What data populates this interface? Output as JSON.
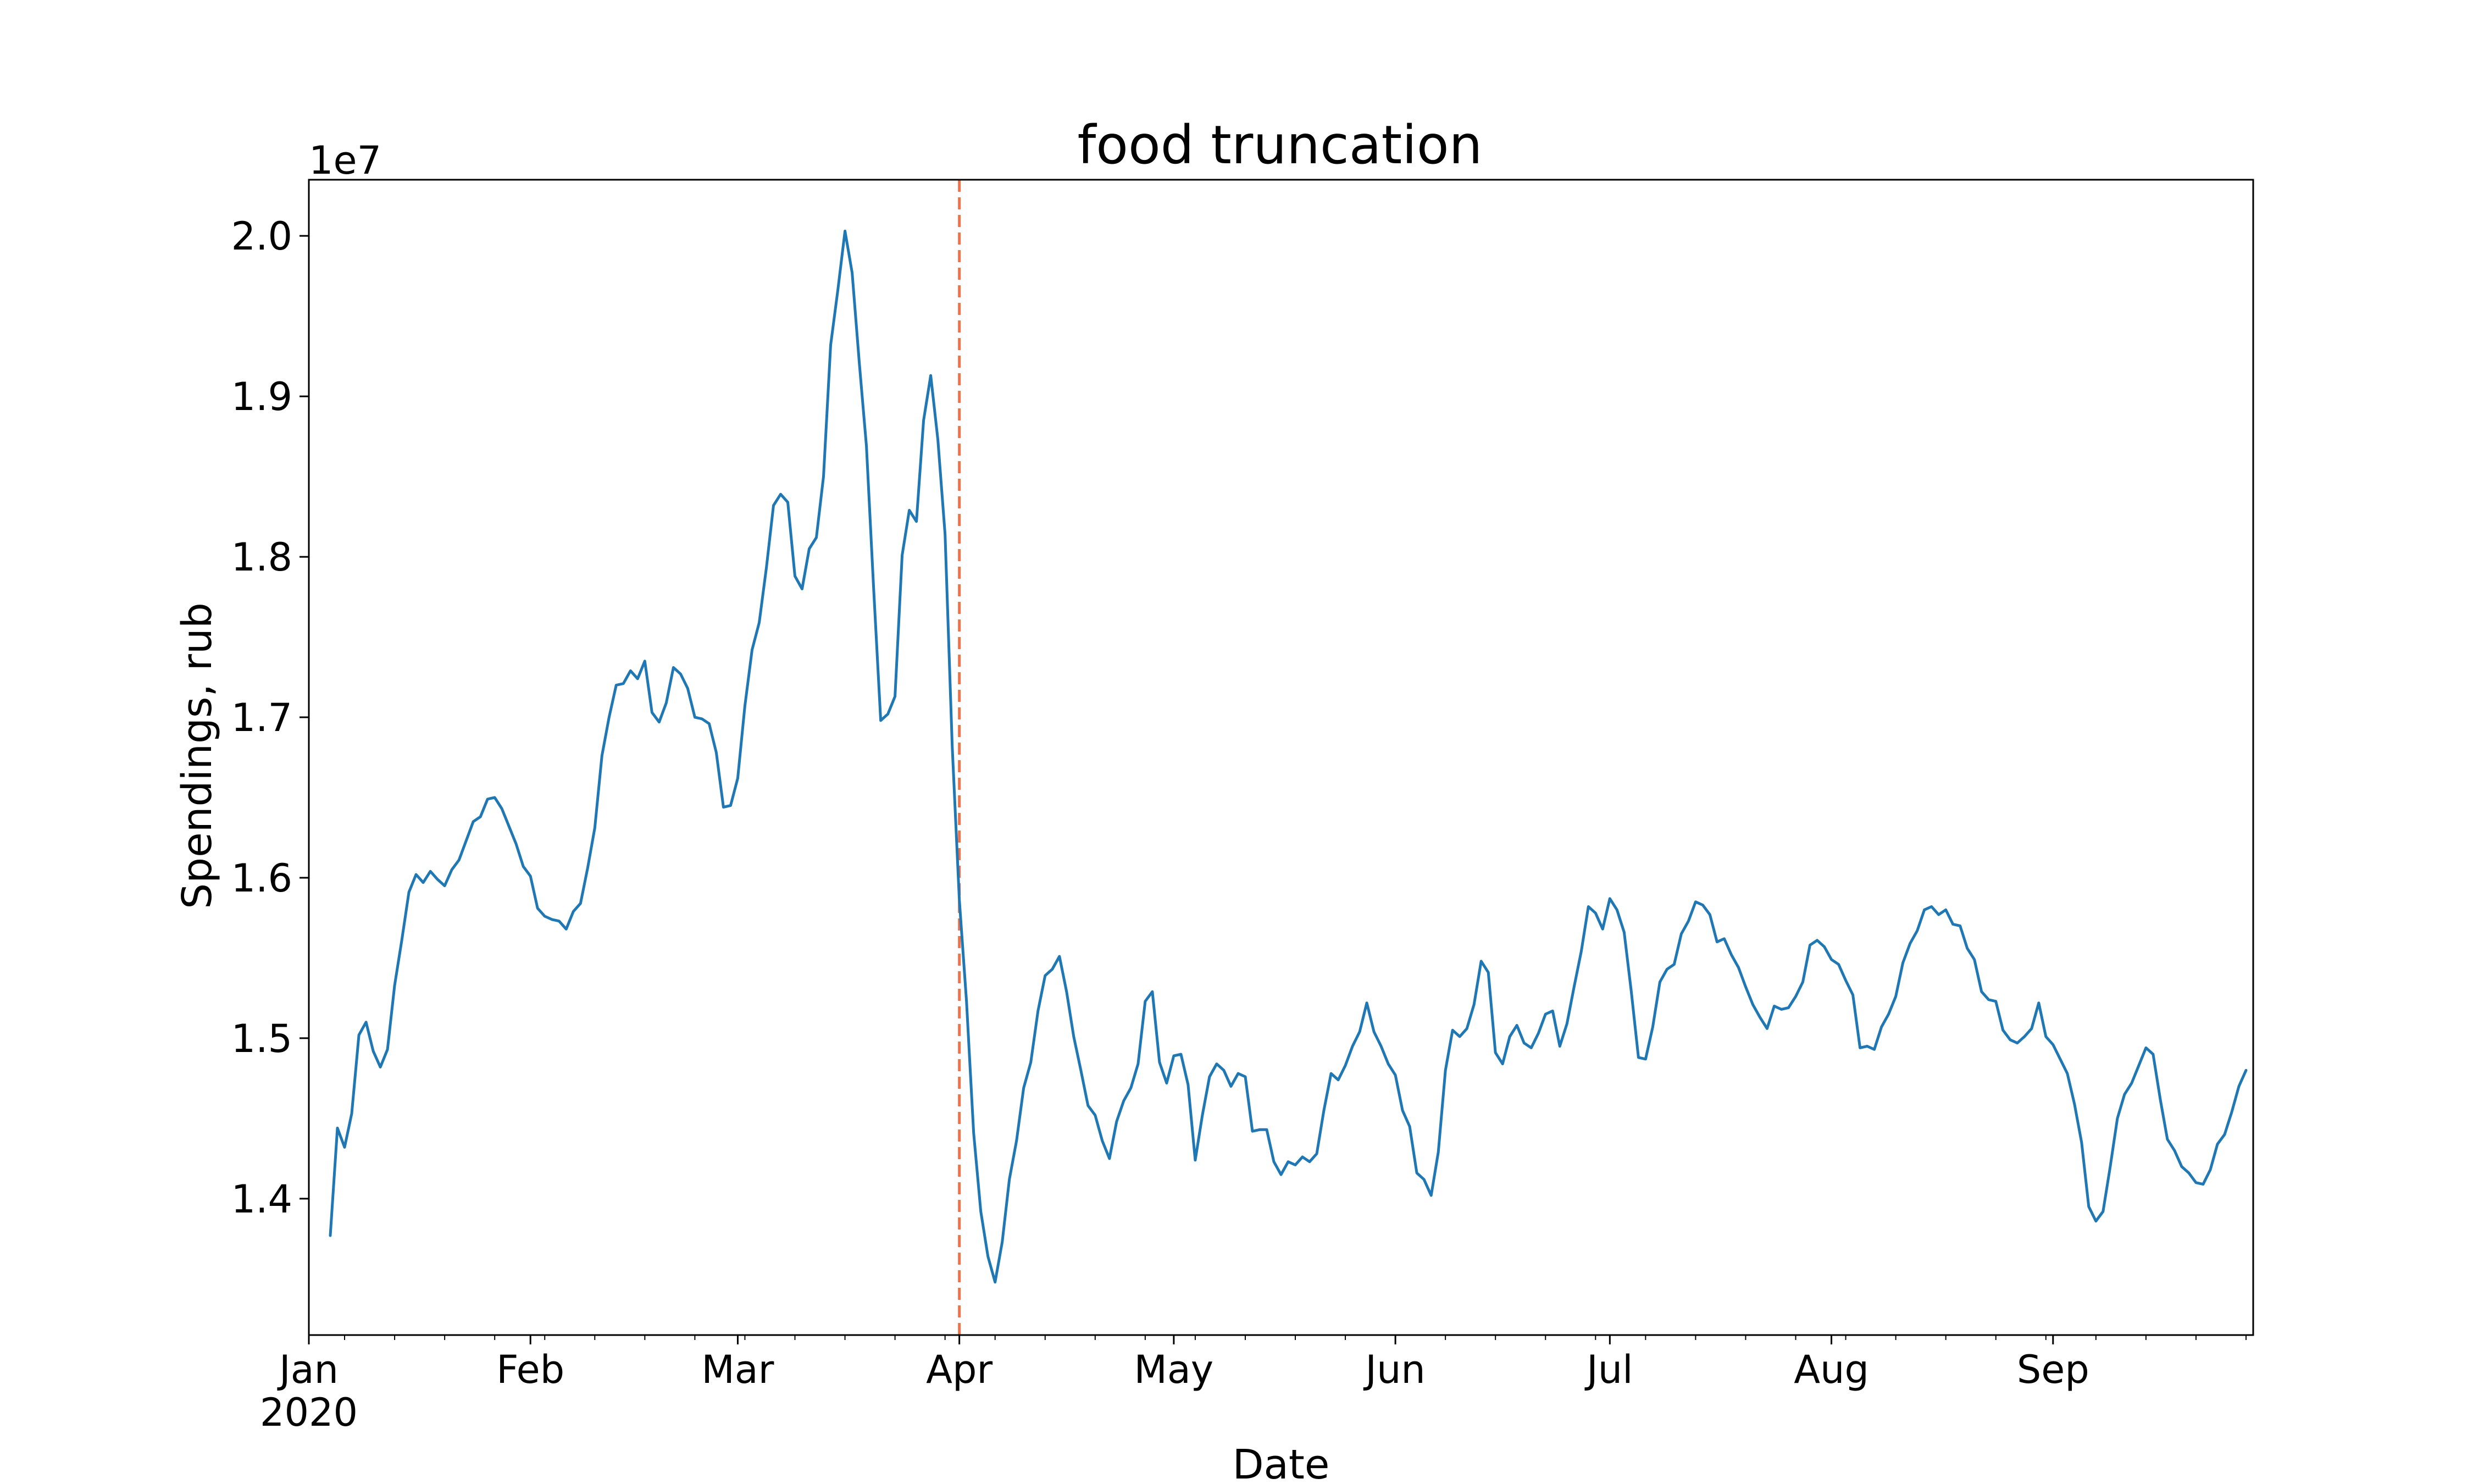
{
  "chart_data": {
    "type": "line",
    "title": "food truncation",
    "xlabel": "Date",
    "ylabel": "Spendings, rub",
    "y_offset_text": "1e7",
    "ylim": [
      13150000,
      20350000
    ],
    "xlim": [
      "2020-01-01",
      "2020-09-29"
    ],
    "grid": false,
    "x_ticks": [
      {
        "date": "2020-01-01",
        "label": "Jan",
        "sublabel": "2020"
      },
      {
        "date": "2020-02-01",
        "label": "Feb"
      },
      {
        "date": "2020-03-01",
        "label": "Mar"
      },
      {
        "date": "2020-04-01",
        "label": "Apr"
      },
      {
        "date": "2020-05-01",
        "label": "May"
      },
      {
        "date": "2020-06-01",
        "label": "Jun"
      },
      {
        "date": "2020-07-01",
        "label": "Jul"
      },
      {
        "date": "2020-08-01",
        "label": "Aug"
      },
      {
        "date": "2020-09-01",
        "label": "Sep"
      }
    ],
    "y_ticks": [
      {
        "value": 14000000,
        "label": "1.4"
      },
      {
        "value": 15000000,
        "label": "1.5"
      },
      {
        "value": 16000000,
        "label": "1.6"
      },
      {
        "value": 17000000,
        "label": "1.7"
      },
      {
        "value": 18000000,
        "label": "1.8"
      },
      {
        "value": 19000000,
        "label": "1.9"
      },
      {
        "value": 20000000,
        "label": "2.0"
      }
    ],
    "vline": {
      "date": "2020-04-01",
      "color": "#f0714a",
      "style": "dashed"
    },
    "series": [
      {
        "color": "#1f77b4",
        "start_date": "2020-01-04",
        "values": [
          13770000,
          14440000,
          14320000,
          14530000,
          15020000,
          15100000,
          14920000,
          14820000,
          14930000,
          15330000,
          15610000,
          15910000,
          16020000,
          15970000,
          16040000,
          15990000,
          15950000,
          16050000,
          16110000,
          16230000,
          16350000,
          16380000,
          16490000,
          16500000,
          16430000,
          16320000,
          16210000,
          16070000,
          16010000,
          15810000,
          15760000,
          15740000,
          15730000,
          15680000,
          15790000,
          15840000,
          16060000,
          16310000,
          16760000,
          17000000,
          17200000,
          17210000,
          17290000,
          17240000,
          17350000,
          17030000,
          16970000,
          17090000,
          17310000,
          17270000,
          17180000,
          17000000,
          16990000,
          16960000,
          16780000,
          16440000,
          16450000,
          16620000,
          17070000,
          17420000,
          17590000,
          17930000,
          18320000,
          18390000,
          18340000,
          17880000,
          17800000,
          18050000,
          18120000,
          18500000,
          19320000,
          19660000,
          20030000,
          19770000,
          19210000,
          18690000,
          17810000,
          16980000,
          17020000,
          17130000,
          18010000,
          18290000,
          18220000,
          18850000,
          19130000,
          18730000,
          18140000,
          16820000,
          15860000,
          15230000,
          14410000,
          13920000,
          13640000,
          13480000,
          13730000,
          14120000,
          14360000,
          14690000,
          14850000,
          15170000,
          15390000,
          15430000,
          15510000,
          15290000,
          15010000,
          14800000,
          14580000,
          14520000,
          14360000,
          14250000,
          14480000,
          14610000,
          14690000,
          14840000,
          15230000,
          15290000,
          14850000,
          14720000,
          14890000,
          14900000,
          14710000,
          14240000,
          14520000,
          14760000,
          14840000,
          14800000,
          14700000,
          14780000,
          14760000,
          14420000,
          14430000,
          14430000,
          14230000,
          14150000,
          14230000,
          14210000,
          14260000,
          14230000,
          14280000,
          14550000,
          14780000,
          14740000,
          14830000,
          14950000,
          15040000,
          15220000,
          15040000,
          14950000,
          14840000,
          14770000,
          14550000,
          14450000,
          14160000,
          14120000,
          14020000,
          14290000,
          14800000,
          15050000,
          15010000,
          15060000,
          15210000,
          15480000,
          15410000,
          14910000,
          14840000,
          15010000,
          15080000,
          14970000,
          14940000,
          15030000,
          15150000,
          15170000,
          14950000,
          15090000,
          15320000,
          15540000,
          15820000,
          15780000,
          15680000,
          15870000,
          15800000,
          15660000,
          15290000,
          14880000,
          14870000,
          15070000,
          15350000,
          15430000,
          15460000,
          15650000,
          15730000,
          15850000,
          15830000,
          15770000,
          15600000,
          15620000,
          15520000,
          15440000,
          15320000,
          15210000,
          15130000,
          15060000,
          15200000,
          15180000,
          15190000,
          15260000,
          15350000,
          15580000,
          15610000,
          15570000,
          15490000,
          15460000,
          15360000,
          15270000,
          14940000,
          14950000,
          14930000,
          15070000,
          15150000,
          15260000,
          15470000,
          15590000,
          15670000,
          15800000,
          15820000,
          15770000,
          15800000,
          15710000,
          15700000,
          15560000,
          15490000,
          15290000,
          15240000,
          15230000,
          15050000,
          14990000,
          14970000,
          15010000,
          15060000,
          15220000,
          15010000,
          14960000,
          14870000,
          14780000,
          14590000,
          14350000,
          13950000,
          13860000,
          13920000,
          14200000,
          14500000,
          14650000,
          14720000,
          14830000,
          14940000,
          14900000,
          14620000,
          14370000,
          14300000,
          14200000,
          14160000,
          14100000,
          14090000,
          14180000,
          14340000,
          14400000,
          14540000,
          14700000,
          14800000
        ]
      }
    ]
  }
}
